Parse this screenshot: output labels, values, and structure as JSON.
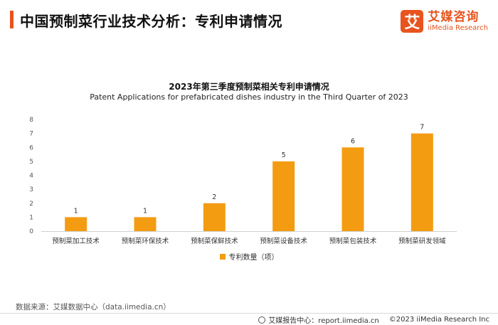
{
  "header": {
    "title": "中国预制菜行业技术分析：专利申请情况",
    "brand_logo_char": "艾",
    "brand_cn": "艾媒咨询",
    "brand_en": "iiMedia Research"
  },
  "chart_data": {
    "type": "bar",
    "title": "2023年第三季度预制菜相关专利申请情况",
    "subtitle": "Patent Applications for prefabricated dishes industry in the Third Quarter of 2023",
    "categories": [
      "预制菜加工技术",
      "预制菜环保技术",
      "预制菜保鲜技术",
      "预制菜设备技术",
      "预制菜包装技术",
      "预制菜研发领域"
    ],
    "series": [
      {
        "name": "专利数量（项）",
        "values": [
          1,
          1,
          2,
          5,
          6,
          7
        ],
        "color": "#f39c12"
      }
    ],
    "xlabel": "",
    "ylabel": "",
    "ylim": [
      0,
      8
    ],
    "yticks": [
      0,
      1,
      2,
      3,
      4,
      5,
      6,
      7,
      8
    ],
    "grid": false,
    "legend": "bottom-center"
  },
  "footer": {
    "source": "数据来源：艾媒数据中心（data.iimedia.cn）",
    "report": "艾媒报告中心：report.iimedia.cn",
    "copyright": "©2023  iiMedia Research  Inc"
  },
  "colors": {
    "accent": "#e8541e",
    "bar": "#f39c12"
  }
}
